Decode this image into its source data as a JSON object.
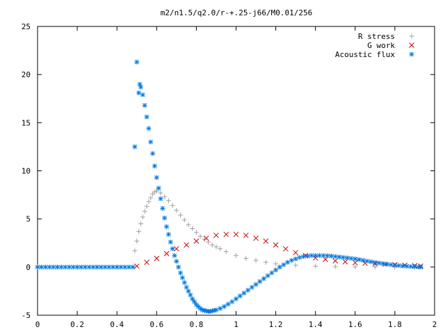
{
  "chart_data": {
    "type": "scatter",
    "title": "m2/n1.5/q2.0/r-+.25-j66/M0.01/256",
    "xlabel": "",
    "ylabel": "",
    "xlim": [
      0,
      2
    ],
    "ylim": [
      -5,
      25
    ],
    "xticks": [
      "0",
      "0.2",
      "0.4",
      "0.6",
      "0.8",
      "1",
      "1.2",
      "1.4",
      "1.6",
      "1.8",
      "2"
    ],
    "yticks": [
      "-5",
      "0",
      "5",
      "10",
      "15",
      "20",
      "25"
    ],
    "grid": false,
    "legend_position": "top-right",
    "series": [
      {
        "name": "R stress",
        "marker": "plus",
        "color": "#a0a0a0",
        "points": [
          [
            0.0,
            0
          ],
          [
            0.1,
            0
          ],
          [
            0.2,
            0
          ],
          [
            0.3,
            0
          ],
          [
            0.4,
            0
          ],
          [
            0.48,
            0
          ],
          [
            0.49,
            1.7
          ],
          [
            0.5,
            2.7
          ],
          [
            0.51,
            3.7
          ],
          [
            0.52,
            4.5
          ],
          [
            0.53,
            5.2
          ],
          [
            0.54,
            5.8
          ],
          [
            0.55,
            6.3
          ],
          [
            0.56,
            6.8
          ],
          [
            0.57,
            7.2
          ],
          [
            0.58,
            7.6
          ],
          [
            0.59,
            7.8
          ],
          [
            0.6,
            7.9
          ],
          [
            0.62,
            7.7
          ],
          [
            0.64,
            7.3
          ],
          [
            0.66,
            6.9
          ],
          [
            0.68,
            6.4
          ],
          [
            0.7,
            5.9
          ],
          [
            0.72,
            5.4
          ],
          [
            0.74,
            4.9
          ],
          [
            0.76,
            4.4
          ],
          [
            0.78,
            4.0
          ],
          [
            0.8,
            3.6
          ],
          [
            0.82,
            3.2
          ],
          [
            0.84,
            2.9
          ],
          [
            0.86,
            2.6
          ],
          [
            0.88,
            2.3
          ],
          [
            0.9,
            2.1
          ],
          [
            0.92,
            1.9
          ],
          [
            0.95,
            1.6
          ],
          [
            1.0,
            1.2
          ],
          [
            1.05,
            0.9
          ],
          [
            1.1,
            0.7
          ],
          [
            1.15,
            0.5
          ],
          [
            1.2,
            0.35
          ],
          [
            1.3,
            0.2
          ],
          [
            1.4,
            0.1
          ],
          [
            1.5,
            0.05
          ],
          [
            1.6,
            0.02
          ],
          [
            1.7,
            0.01
          ],
          [
            1.8,
            0
          ],
          [
            1.9,
            0
          ],
          [
            1.93,
            0
          ]
        ]
      },
      {
        "name": "G work",
        "marker": "cross",
        "color": "#cc0000",
        "points": [
          [
            0.5,
            0.1
          ],
          [
            0.55,
            0.5
          ],
          [
            0.6,
            0.9
          ],
          [
            0.65,
            1.4
          ],
          [
            0.7,
            1.9
          ],
          [
            0.75,
            2.3
          ],
          [
            0.8,
            2.7
          ],
          [
            0.85,
            3.0
          ],
          [
            0.9,
            3.3
          ],
          [
            0.95,
            3.4
          ],
          [
            1.0,
            3.4
          ],
          [
            1.05,
            3.3
          ],
          [
            1.1,
            3.0
          ],
          [
            1.15,
            2.7
          ],
          [
            1.2,
            2.3
          ],
          [
            1.25,
            1.9
          ],
          [
            1.3,
            1.5
          ],
          [
            1.35,
            1.2
          ],
          [
            1.4,
            0.95
          ],
          [
            1.45,
            0.8
          ],
          [
            1.5,
            0.65
          ],
          [
            1.55,
            0.55
          ],
          [
            1.6,
            0.45
          ],
          [
            1.65,
            0.4
          ],
          [
            1.7,
            0.35
          ],
          [
            1.75,
            0.3
          ],
          [
            1.8,
            0.25
          ],
          [
            1.85,
            0.2
          ],
          [
            1.9,
            0.15
          ],
          [
            1.93,
            0.1
          ]
        ]
      },
      {
        "name": "Acoustic flux",
        "marker": "star",
        "color": "#0077dd",
        "points": [
          [
            0.0,
            0
          ],
          [
            0.02,
            0
          ],
          [
            0.04,
            0
          ],
          [
            0.06,
            0
          ],
          [
            0.08,
            0
          ],
          [
            0.1,
            0
          ],
          [
            0.12,
            0
          ],
          [
            0.14,
            0
          ],
          [
            0.16,
            0
          ],
          [
            0.18,
            0
          ],
          [
            0.2,
            0
          ],
          [
            0.22,
            0
          ],
          [
            0.24,
            0
          ],
          [
            0.26,
            0
          ],
          [
            0.28,
            0
          ],
          [
            0.3,
            0
          ],
          [
            0.32,
            0
          ],
          [
            0.34,
            0
          ],
          [
            0.36,
            0
          ],
          [
            0.38,
            0
          ],
          [
            0.4,
            0
          ],
          [
            0.42,
            0
          ],
          [
            0.44,
            0
          ],
          [
            0.46,
            0
          ],
          [
            0.48,
            0
          ],
          [
            0.49,
            12.5
          ],
          [
            0.5,
            21.3
          ],
          [
            0.51,
            18.1
          ],
          [
            0.515,
            19.0
          ],
          [
            0.52,
            18.7
          ],
          [
            0.53,
            17.9
          ],
          [
            0.54,
            16.8
          ],
          [
            0.55,
            15.6
          ],
          [
            0.56,
            14.4
          ],
          [
            0.57,
            13.0
          ],
          [
            0.58,
            11.8
          ],
          [
            0.59,
            10.5
          ],
          [
            0.6,
            9.3
          ],
          [
            0.61,
            8.2
          ],
          [
            0.62,
            7.1
          ],
          [
            0.63,
            6.1
          ],
          [
            0.64,
            5.1
          ],
          [
            0.65,
            4.2
          ],
          [
            0.66,
            3.4
          ],
          [
            0.67,
            2.6
          ],
          [
            0.68,
            1.9
          ],
          [
            0.69,
            1.2
          ],
          [
            0.7,
            0.6
          ],
          [
            0.71,
            0.0
          ],
          [
            0.72,
            -0.6
          ],
          [
            0.73,
            -1.1
          ],
          [
            0.74,
            -1.6
          ],
          [
            0.75,
            -2.1
          ],
          [
            0.76,
            -2.5
          ],
          [
            0.77,
            -2.9
          ],
          [
            0.78,
            -3.3
          ],
          [
            0.79,
            -3.6
          ],
          [
            0.8,
            -3.9
          ],
          [
            0.81,
            -4.1
          ],
          [
            0.82,
            -4.3
          ],
          [
            0.83,
            -4.45
          ],
          [
            0.84,
            -4.5
          ],
          [
            0.85,
            -4.55
          ],
          [
            0.86,
            -4.6
          ],
          [
            0.87,
            -4.6
          ],
          [
            0.88,
            -4.55
          ],
          [
            0.89,
            -4.5
          ],
          [
            0.9,
            -4.45
          ],
          [
            0.92,
            -4.3
          ],
          [
            0.94,
            -4.1
          ],
          [
            0.96,
            -3.85
          ],
          [
            0.98,
            -3.6
          ],
          [
            1.0,
            -3.3
          ],
          [
            1.02,
            -3.0
          ],
          [
            1.04,
            -2.7
          ],
          [
            1.06,
            -2.4
          ],
          [
            1.08,
            -2.1
          ],
          [
            1.1,
            -1.8
          ],
          [
            1.12,
            -1.5
          ],
          [
            1.14,
            -1.2
          ],
          [
            1.16,
            -0.9
          ],
          [
            1.18,
            -0.6
          ],
          [
            1.2,
            -0.3
          ],
          [
            1.22,
            0.0
          ],
          [
            1.24,
            0.25
          ],
          [
            1.26,
            0.5
          ],
          [
            1.28,
            0.7
          ],
          [
            1.3,
            0.85
          ],
          [
            1.32,
            1.0
          ],
          [
            1.34,
            1.1
          ],
          [
            1.36,
            1.15
          ],
          [
            1.38,
            1.2
          ],
          [
            1.4,
            1.2
          ],
          [
            1.42,
            1.2
          ],
          [
            1.44,
            1.2
          ],
          [
            1.46,
            1.18
          ],
          [
            1.48,
            1.15
          ],
          [
            1.5,
            1.1
          ],
          [
            1.52,
            1.05
          ],
          [
            1.54,
            1.0
          ],
          [
            1.56,
            0.95
          ],
          [
            1.58,
            0.9
          ],
          [
            1.6,
            0.85
          ],
          [
            1.62,
            0.78
          ],
          [
            1.64,
            0.7
          ],
          [
            1.66,
            0.62
          ],
          [
            1.68,
            0.55
          ],
          [
            1.7,
            0.48
          ],
          [
            1.72,
            0.42
          ],
          [
            1.74,
            0.36
          ],
          [
            1.76,
            0.3
          ],
          [
            1.78,
            0.25
          ],
          [
            1.8,
            0.2
          ],
          [
            1.82,
            0.16
          ],
          [
            1.84,
            0.12
          ],
          [
            1.86,
            0.09
          ],
          [
            1.88,
            0.06
          ],
          [
            1.9,
            0.04
          ],
          [
            1.92,
            0.02
          ],
          [
            1.93,
            0.01
          ]
        ]
      }
    ]
  }
}
